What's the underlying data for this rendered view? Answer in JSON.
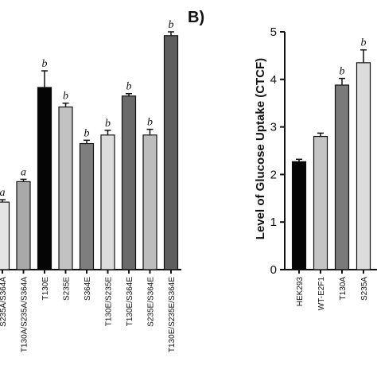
{
  "chart_data": [
    {
      "type": "bar",
      "categories": [
        "S235A/S364A",
        "T130A/S235A/S364A",
        "T130E",
        "S235E",
        "S364E",
        "T130E/S235E",
        "T130E/S364E",
        "S235E/S364E",
        "T130E/S235E/S364E"
      ],
      "values": [
        1.42,
        1.85,
        3.83,
        3.42,
        2.65,
        2.83,
        3.65,
        2.83,
        4.92
      ],
      "errors": [
        0.05,
        0.05,
        0.35,
        0.08,
        0.07,
        0.1,
        0.05,
        0.12,
        0.08
      ],
      "significance": [
        "a",
        "a",
        "b",
        "b",
        "b",
        "b",
        "b",
        "b",
        "b"
      ],
      "colors": [
        "#e4e4e4",
        "#a9a9a9",
        "#050505",
        "#c2c2c2",
        "#7e7e7e",
        "#dcdcdc",
        "#6a6a6a",
        "#bdbdbd",
        "#5e5e5e"
      ],
      "ylim": [
        0,
        5
      ],
      "grid": false
    },
    {
      "type": "bar",
      "panel_label": "B)",
      "ylabel": "Level of Glucose Uptake (CTCF)",
      "categories": [
        "HEK293",
        "WT-E2F1",
        "T130A",
        "S235A"
      ],
      "values": [
        2.27,
        2.8,
        3.88,
        4.35
      ],
      "errors": [
        0.05,
        0.07,
        0.14,
        0.27
      ],
      "significance": [
        "",
        "",
        "b",
        "b"
      ],
      "colors": [
        "#050505",
        "#c4c4c4",
        "#7a7a7a",
        "#dcdcdc"
      ],
      "ylim": [
        0,
        5
      ],
      "yticks": [
        0,
        1,
        2,
        3,
        4,
        5
      ],
      "grid": false
    }
  ]
}
